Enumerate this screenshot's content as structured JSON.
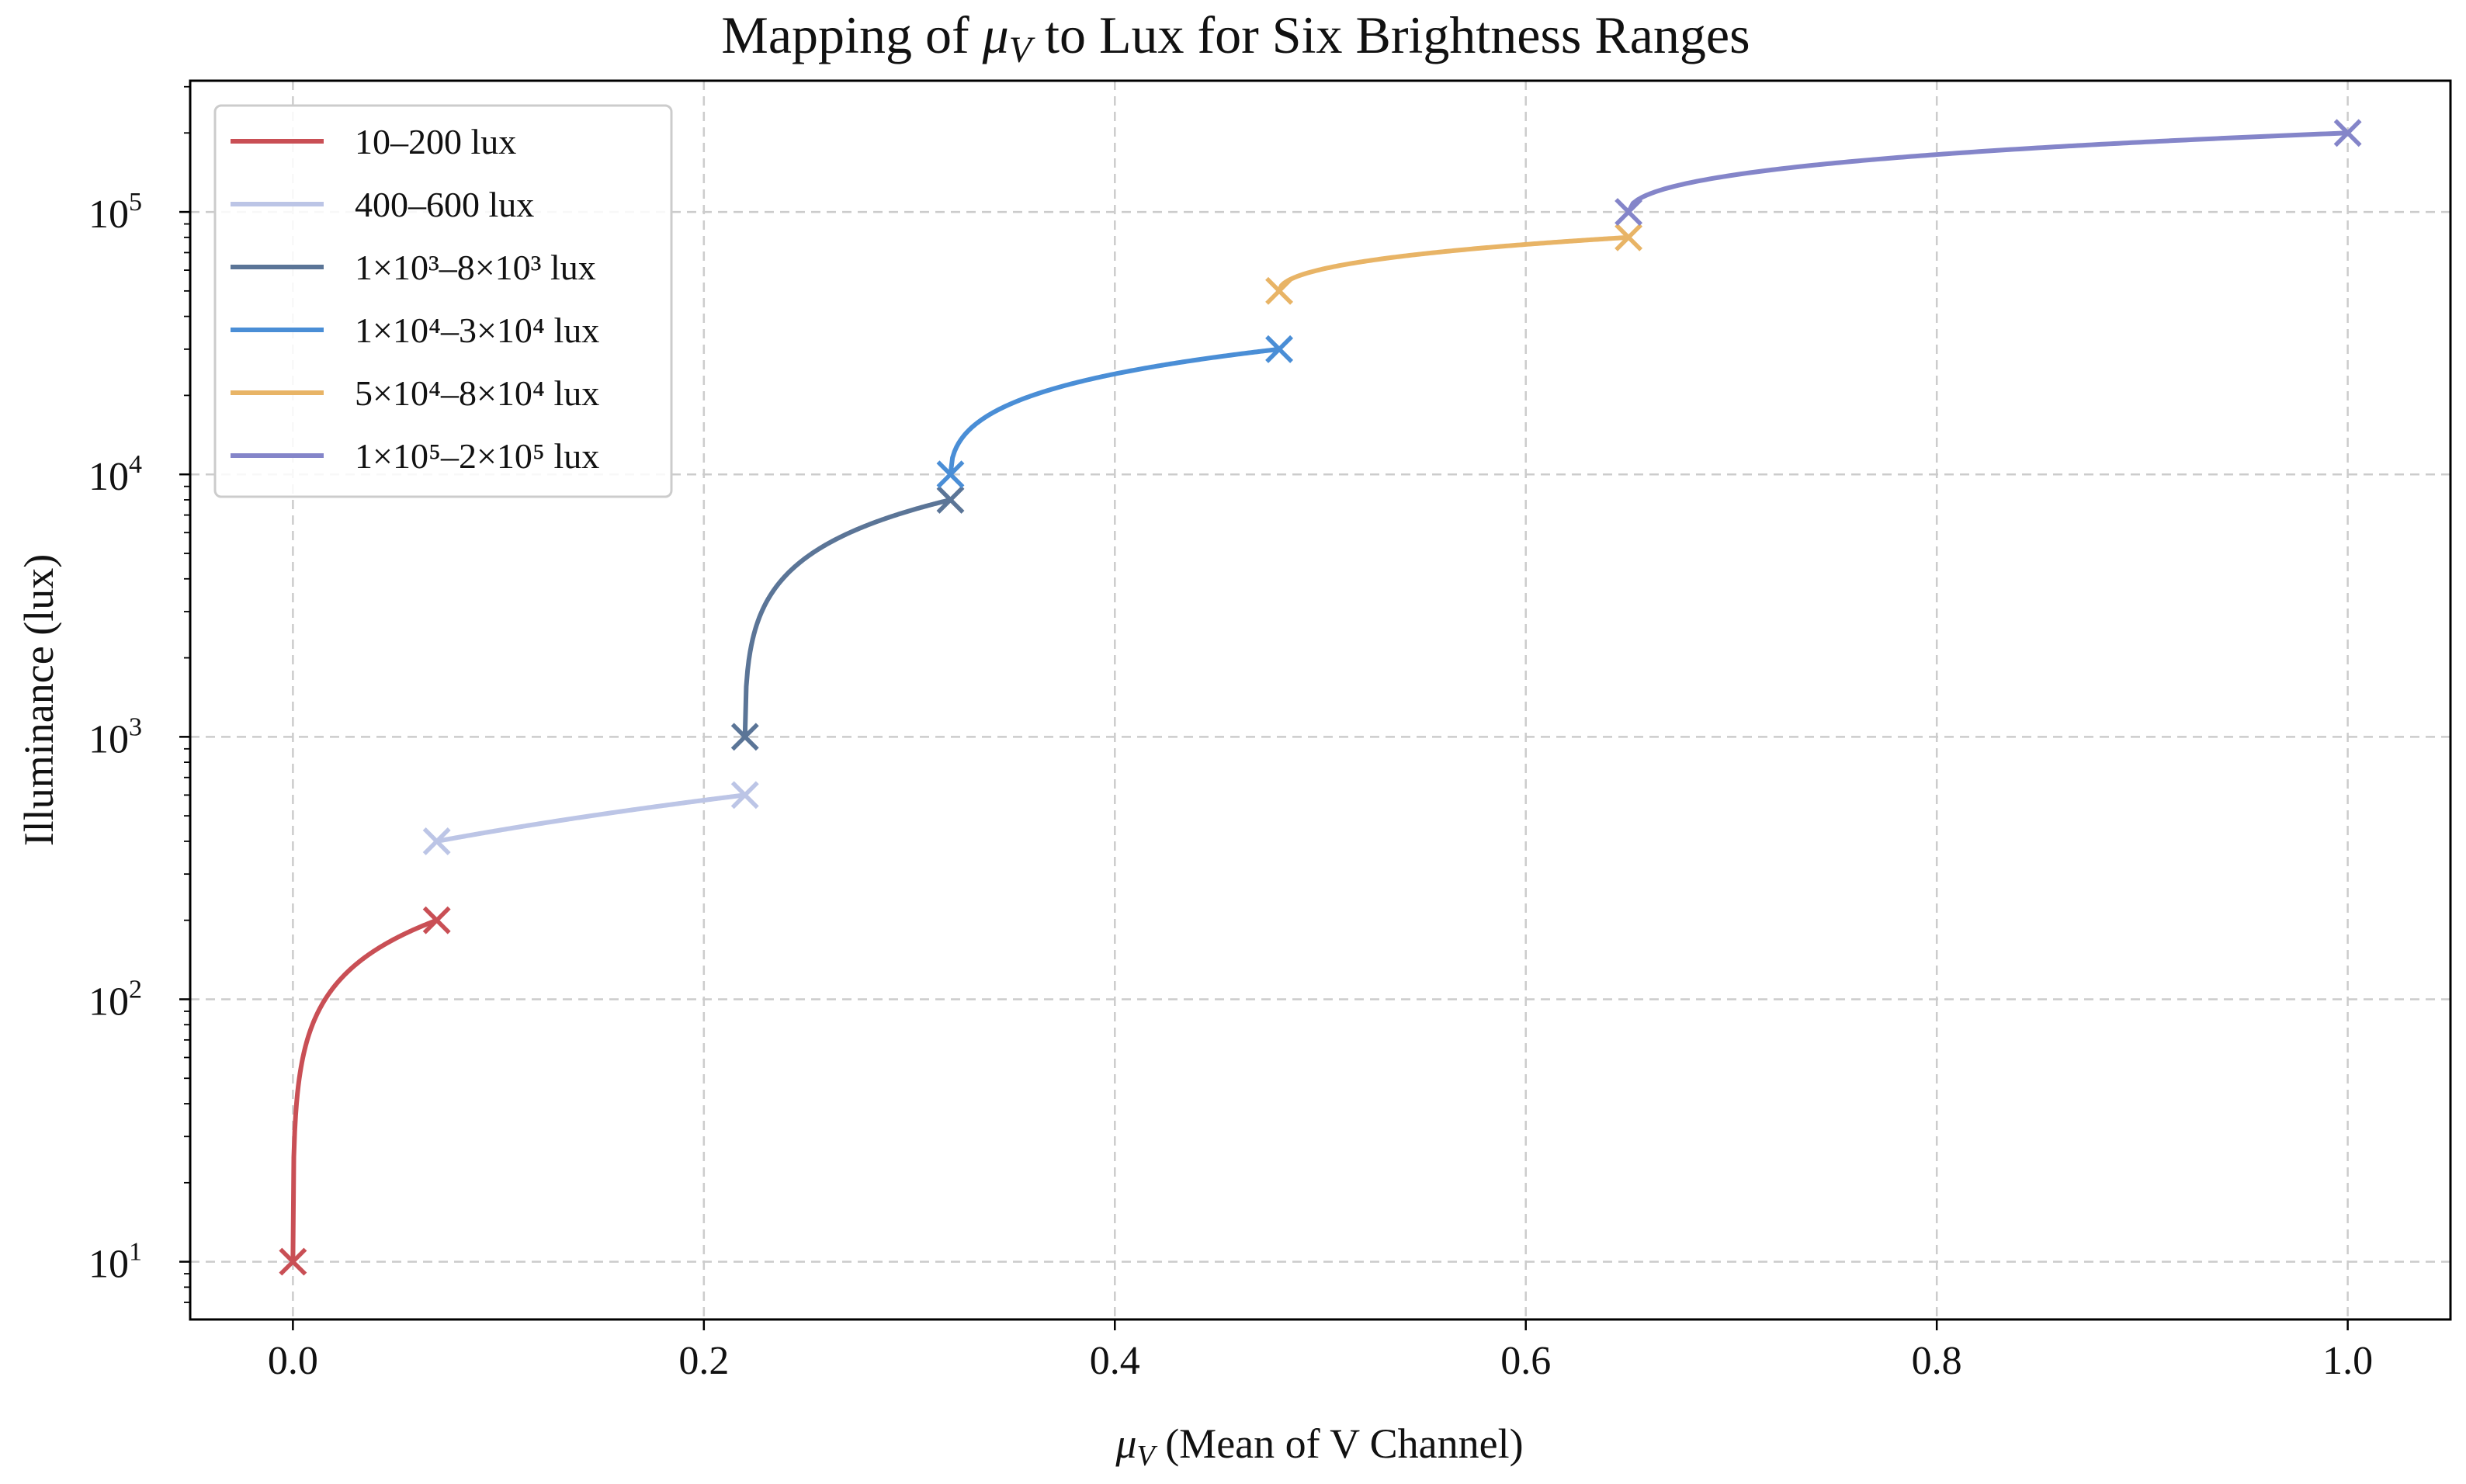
{
  "chart_data": {
    "type": "line",
    "title": {
      "prefix": "Mapping of ",
      "mu": "μ",
      "sub": "V",
      "suffix": " to Lux for Six Brightness Ranges"
    },
    "xlabel": {
      "mu": "μ",
      "sub": "V",
      "suffix": " (Mean of V Channel)"
    },
    "ylabel": "Illuminance (lux)",
    "xlim": [
      -0.05,
      1.05
    ],
    "ylim_log10": [
      0.78,
      5.5
    ],
    "yscale": "log",
    "grid": true,
    "legend_position": "top-left",
    "xticks": [
      {
        "value": 0.0,
        "label": "0.0"
      },
      {
        "value": 0.2,
        "label": "0.2"
      },
      {
        "value": 0.4,
        "label": "0.4"
      },
      {
        "value": 0.6,
        "label": "0.6"
      },
      {
        "value": 0.8,
        "label": "0.8"
      },
      {
        "value": 1.0,
        "label": "1.0"
      }
    ],
    "yticks": [
      {
        "exp": 1,
        "base": "10",
        "sup": "1"
      },
      {
        "exp": 2,
        "base": "10",
        "sup": "2"
      },
      {
        "exp": 3,
        "base": "10",
        "sup": "3"
      },
      {
        "exp": 4,
        "base": "10",
        "sup": "4"
      },
      {
        "exp": 5,
        "base": "10",
        "sup": "5"
      }
    ],
    "series": [
      {
        "name": "10–200 lux",
        "color": "#c94f55",
        "x_start": 0.0,
        "x_end": 0.07,
        "y_start": 10,
        "y_end": 200,
        "curve": "sqrt"
      },
      {
        "name": "400–600 lux",
        "color": "#bcc5e6",
        "x_start": 0.07,
        "x_end": 0.22,
        "y_start": 400,
        "y_end": 600,
        "curve": "linear"
      },
      {
        "name": "1×10³–8×10³ lux",
        "color": "#5b7597",
        "x_start": 0.22,
        "x_end": 0.32,
        "y_start": 1000,
        "y_end": 8000,
        "curve": "sqrt"
      },
      {
        "name": "1×10⁴–3×10⁴ lux",
        "color": "#4a8ed6",
        "x_start": 0.32,
        "x_end": 0.48,
        "y_start": 10000,
        "y_end": 30000,
        "curve": "sqrt"
      },
      {
        "name": "5×10⁴–8×10⁴ lux",
        "color": "#e8b466",
        "x_start": 0.48,
        "x_end": 0.65,
        "y_start": 50000,
        "y_end": 80000,
        "curve": "sqrt"
      },
      {
        "name": "1×10⁵–2×10⁵ lux",
        "color": "#8485c9",
        "x_start": 0.65,
        "x_end": 1.0,
        "y_start": 100000,
        "y_end": 200000,
        "curve": "sqrt"
      }
    ]
  }
}
